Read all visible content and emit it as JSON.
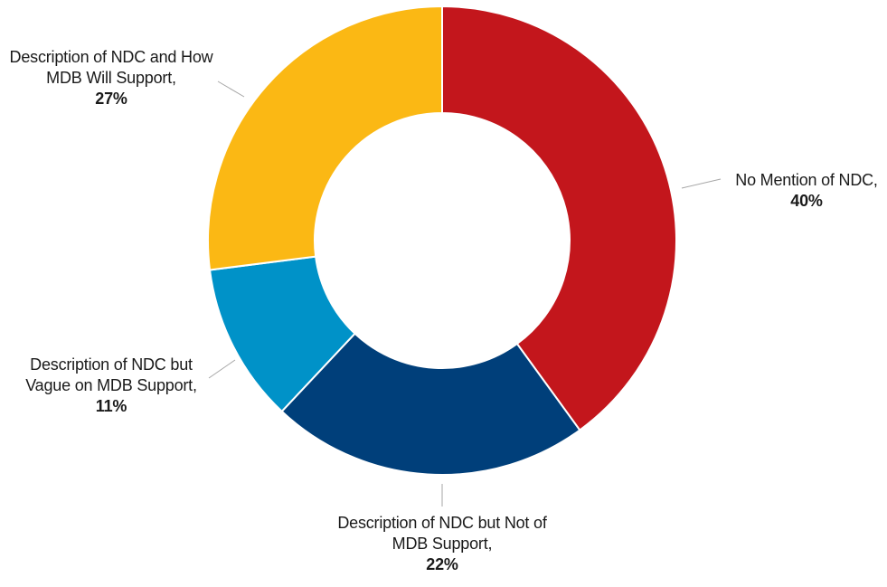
{
  "chart_data": {
    "type": "pie",
    "donut": true,
    "title": "",
    "slices": [
      {
        "label": "No Mention of NDC,",
        "value": 40,
        "value_label": "40%",
        "color": "#c3161c"
      },
      {
        "label": "Description of NDC but Not of MDB Support,",
        "value": 22,
        "value_label": "22%",
        "color": "#003f7a"
      },
      {
        "label": "Description of NDC but Vague on MDB Support,",
        "value": 11,
        "value_label": "11%",
        "color": "#0092c8"
      },
      {
        "label": "Description of NDC and How MDB Will Support,",
        "value": 27,
        "value_label": "27%",
        "color": "#fbb814"
      }
    ],
    "start_angle": "12 o'clock",
    "direction": "clockwise",
    "legend": "none"
  }
}
